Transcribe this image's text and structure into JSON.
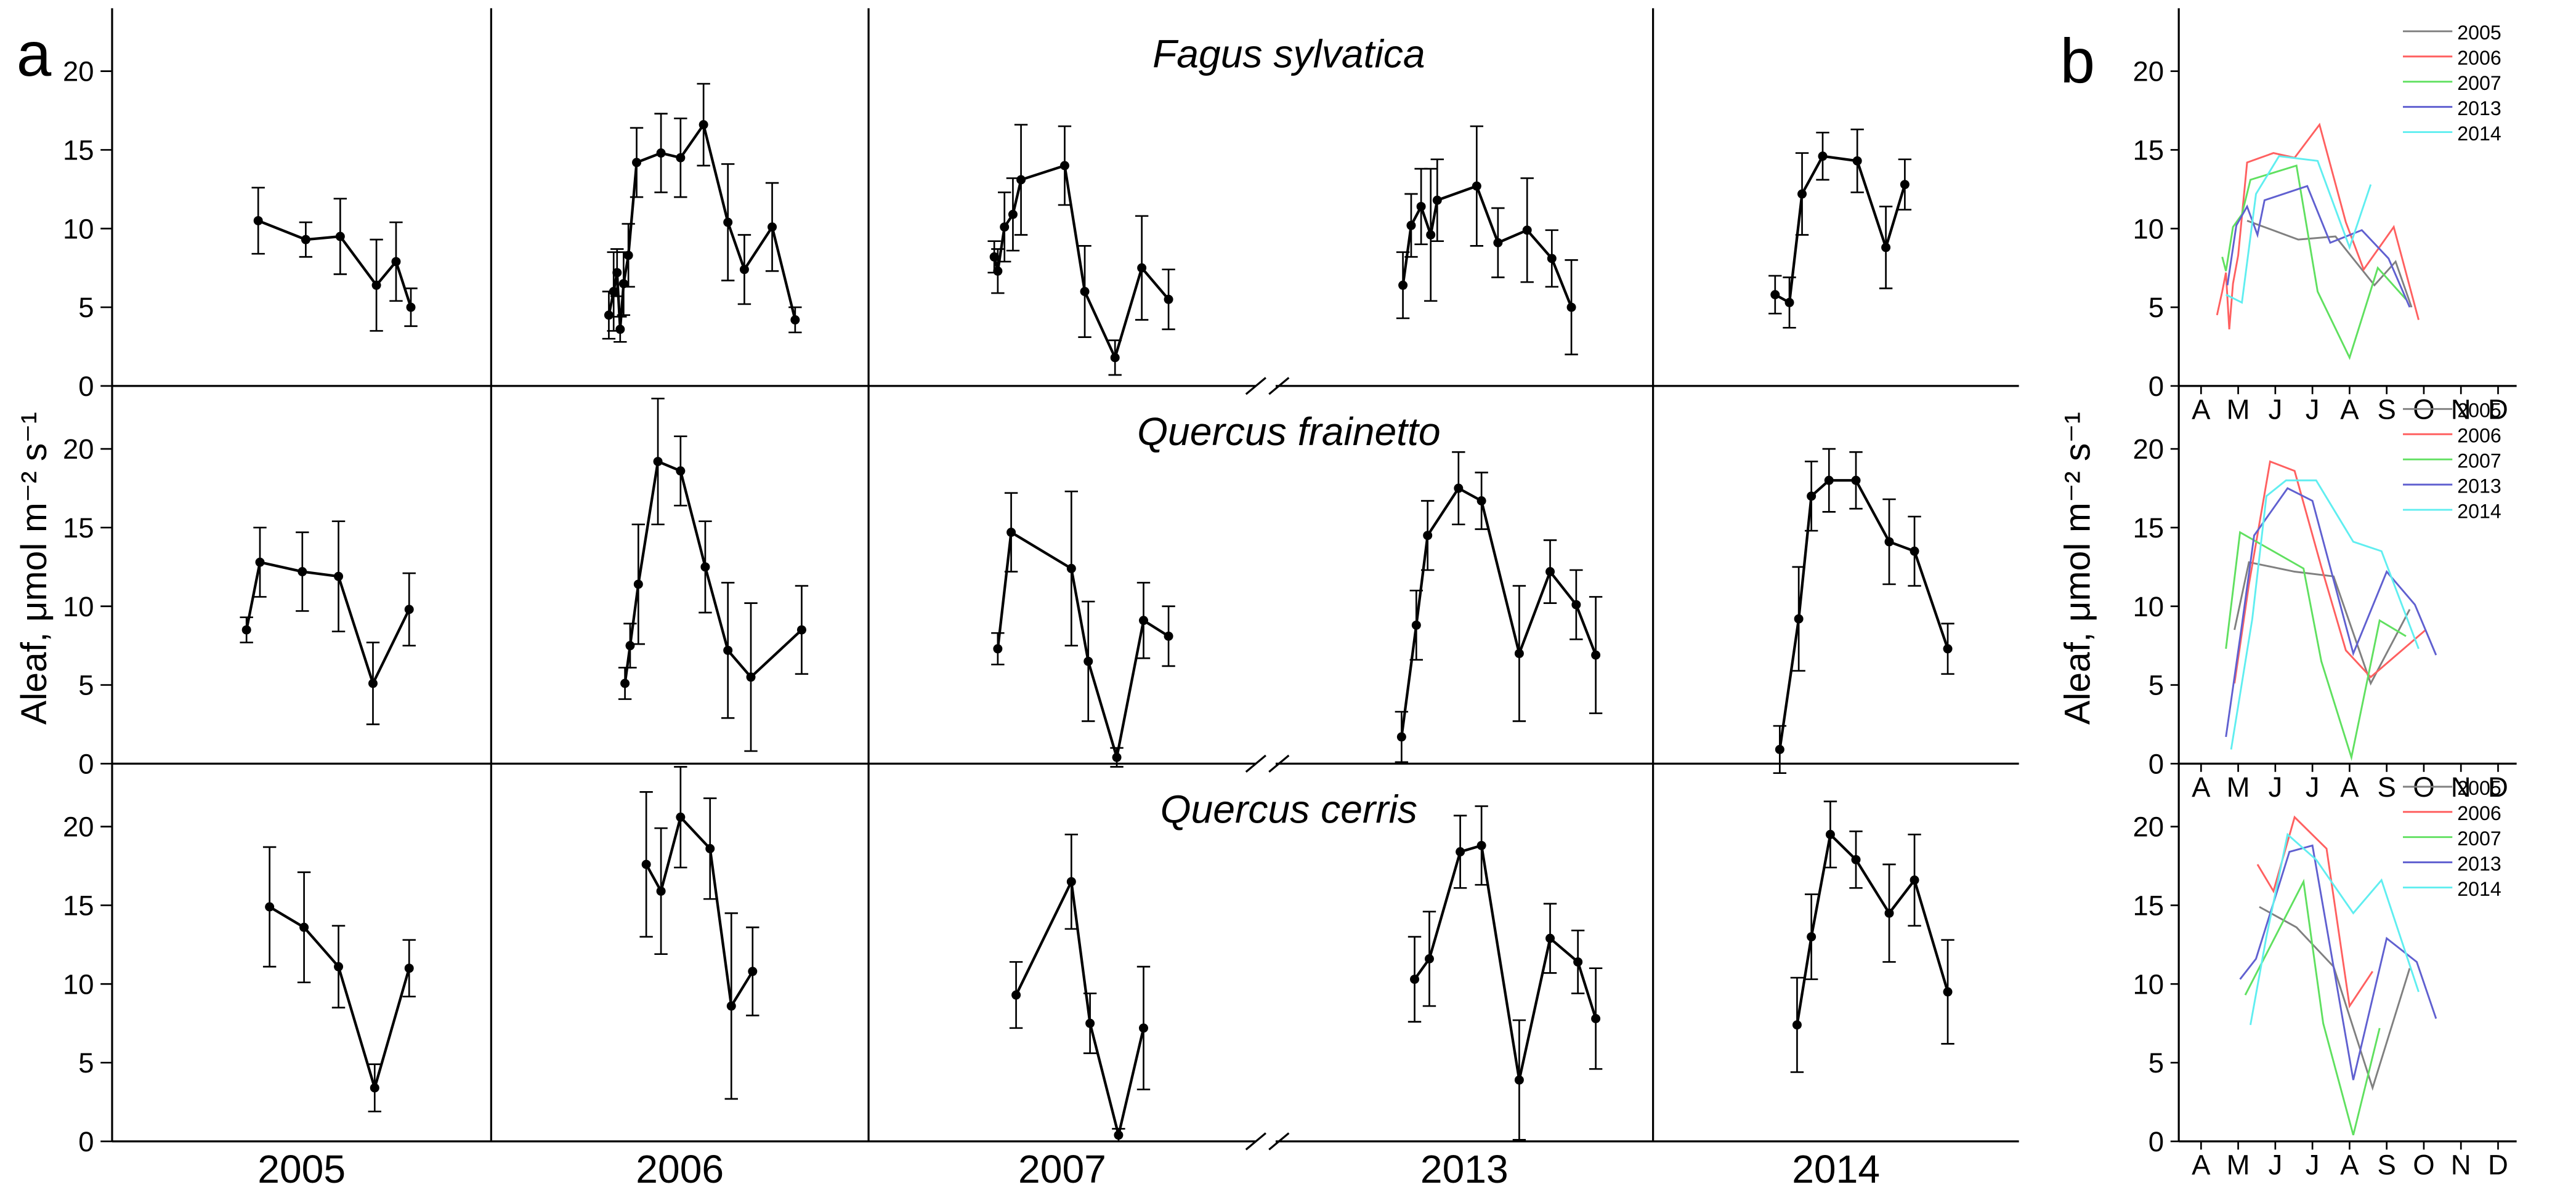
{
  "labels": [
    "a",
    "b"
  ],
  "ylabel": "Aleaf, μmol m⁻² s⁻¹",
  "chart_data": [
    {
      "type": "errorline",
      "title": "Fagus sylvatica",
      "xlim": [
        1,
        12
      ],
      "ylim": [
        0,
        24
      ],
      "yticks": [
        0,
        5,
        10,
        15,
        20
      ],
      "series": [
        {
          "x": [
            5.24,
            6.62,
            7.62,
            8.67,
            9.24,
            9.67
          ],
          "values": [
            10.5,
            9.3,
            9.5,
            6.4,
            7.9,
            5.0
          ],
          "errors": [
            2.1,
            1.1,
            2.4,
            2.9,
            2.5,
            1.2
          ]
        },
        {
          "x": [
            4.43,
            4.57,
            4.67,
            4.76,
            4.86,
            5.0,
            5.24,
            5.95,
            6.52,
            7.19,
            7.9,
            8.38,
            9.19,
            9.86
          ],
          "values": [
            4.5,
            6.0,
            7.2,
            3.6,
            6.5,
            8.3,
            14.2,
            14.8,
            14.5,
            16.6,
            10.4,
            7.4,
            10.1,
            4.2
          ],
          "errors": [
            1.5,
            2.5,
            1.5,
            0.8,
            2.0,
            2.0,
            2.2,
            2.5,
            2.5,
            2.6,
            3.7,
            2.2,
            2.8,
            0.8
          ]
        },
        {
          "x": [
            4.57,
            4.67,
            4.86,
            5.1,
            5.33,
            6.57,
            7.14,
            8.0,
            8.76,
            9.52
          ],
          "values": [
            8.2,
            7.3,
            10.1,
            10.9,
            13.1,
            14.0,
            6.0,
            1.8,
            7.5,
            5.5
          ],
          "errors": [
            1.0,
            1.4,
            2.2,
            2.3,
            3.5,
            2.5,
            2.9,
            1.1,
            3.3,
            1.9
          ]
        },
        {
          "x": [
            4.71,
            4.95,
            5.24,
            5.52,
            5.71,
            6.86,
            7.48,
            8.33,
            9.05,
            9.62
          ],
          "values": [
            6.4,
            10.2,
            11.4,
            9.6,
            11.8,
            12.7,
            9.1,
            9.9,
            8.1,
            5.0
          ],
          "errors": [
            2.1,
            2.0,
            2.4,
            4.2,
            2.6,
            3.8,
            2.2,
            3.3,
            1.8,
            3.0
          ]
        },
        {
          "x": [
            4.67,
            5.1,
            5.48,
            6.1,
            7.14,
            8.0,
            8.57
          ],
          "values": [
            5.8,
            5.3,
            12.2,
            14.6,
            14.3,
            8.8,
            12.8
          ],
          "errors": [
            1.2,
            1.6,
            2.6,
            1.5,
            2.0,
            2.6,
            1.6
          ]
        }
      ]
    },
    {
      "type": "errorline",
      "title": "Quercus frainetto",
      "xlim": [
        1,
        12
      ],
      "ylim": [
        0,
        24
      ],
      "yticks": [
        0,
        5,
        10,
        15,
        20
      ],
      "series": [
        {
          "x": [
            4.9,
            5.29,
            6.52,
            7.57,
            8.57,
            9.62
          ],
          "values": [
            8.5,
            12.8,
            12.2,
            11.9,
            5.1,
            9.8
          ],
          "errors": [
            0.8,
            2.2,
            2.5,
            3.5,
            2.6,
            2.3
          ]
        },
        {
          "x": [
            4.9,
            5.05,
            5.29,
            5.86,
            6.52,
            7.24,
            7.9,
            8.57,
            10.05
          ],
          "values": [
            5.1,
            7.5,
            11.4,
            19.2,
            18.6,
            12.5,
            7.2,
            5.5,
            8.5
          ],
          "errors": [
            1.0,
            1.4,
            3.8,
            4.0,
            2.2,
            2.9,
            4.3,
            4.7,
            2.8
          ]
        },
        {
          "x": [
            4.67,
            5.05,
            6.76,
            7.24,
            8.05,
            8.81,
            9.52
          ],
          "values": [
            7.3,
            14.7,
            12.4,
            6.5,
            0.4,
            9.1,
            8.1
          ],
          "errors": [
            1.0,
            2.5,
            4.9,
            3.8,
            0.6,
            2.4,
            1.9
          ]
        },
        {
          "x": [
            4.67,
            5.1,
            5.43,
            6.33,
            7.0,
            8.1,
            9.0,
            9.76,
            10.33
          ],
          "values": [
            1.7,
            8.8,
            14.5,
            17.5,
            16.7,
            7.0,
            12.2,
            10.1,
            6.9
          ],
          "errors": [
            1.6,
            2.2,
            2.2,
            2.3,
            1.8,
            4.3,
            2.0,
            2.2,
            3.7
          ]
        },
        {
          "x": [
            4.81,
            5.38,
            5.76,
            6.29,
            7.1,
            8.1,
            8.86,
            9.86
          ],
          "values": [
            0.9,
            9.2,
            17.0,
            18.0,
            18.0,
            14.1,
            13.5,
            7.3
          ],
          "errors": [
            1.5,
            3.3,
            2.2,
            2.0,
            1.8,
            2.7,
            2.2,
            1.6
          ]
        }
      ]
    },
    {
      "type": "errorline",
      "title": "Quercus cerris",
      "xlim": [
        1,
        12
      ],
      "ylim": [
        0,
        24
      ],
      "yticks": [
        0,
        5,
        10,
        15,
        20
      ],
      "categories": [
        "2005",
        "2006",
        "2007",
        "2013",
        "2014"
      ],
      "series": [
        {
          "x": [
            5.57,
            6.57,
            7.57,
            8.62,
            9.62
          ],
          "values": [
            14.9,
            13.6,
            11.1,
            3.4,
            11.0
          ],
          "errors": [
            3.8,
            3.5,
            2.6,
            1.5,
            1.8
          ]
        },
        {
          "x": [
            5.52,
            5.95,
            6.52,
            7.38,
            8.0,
            8.62
          ],
          "values": [
            17.6,
            15.9,
            20.6,
            18.6,
            8.6,
            10.8
          ],
          "errors": [
            4.6,
            4.0,
            3.2,
            3.2,
            5.9,
            2.8
          ]
        },
        {
          "x": [
            5.19,
            6.76,
            7.29,
            8.1,
            8.81
          ],
          "values": [
            9.3,
            16.5,
            7.5,
            0.4,
            7.2
          ],
          "errors": [
            2.1,
            3.0,
            1.9,
            0.4,
            3.9
          ]
        },
        {
          "x": [
            5.05,
            5.48,
            6.38,
            7.0,
            8.1,
            9.0,
            9.81,
            10.33
          ],
          "values": [
            10.3,
            11.6,
            18.4,
            18.8,
            3.9,
            12.9,
            11.4,
            7.8
          ],
          "errors": [
            2.7,
            3.0,
            2.3,
            2.5,
            3.8,
            2.2,
            2.0,
            3.2
          ]
        },
        {
          "x": [
            5.33,
            5.76,
            6.33,
            7.1,
            8.1,
            8.86,
            9.86
          ],
          "values": [
            7.4,
            13.0,
            19.5,
            17.9,
            14.5,
            16.6,
            9.5
          ],
          "errors": [
            3.0,
            2.7,
            2.1,
            1.8,
            3.1,
            2.9,
            3.3
          ]
        }
      ]
    },
    {
      "type": "line",
      "xlim": [
        3.4,
        12.5
      ],
      "ylim": [
        0,
        24
      ],
      "yticks": [
        0,
        5,
        10,
        15,
        20
      ],
      "xticks": [
        {
          "value": 4,
          "label": "A"
        },
        {
          "value": 5,
          "label": "M"
        },
        {
          "value": 6,
          "label": "J"
        },
        {
          "value": 7,
          "label": "J"
        },
        {
          "value": 8,
          "label": "A"
        },
        {
          "value": 9,
          "label": "S"
        },
        {
          "value": 10,
          "label": "O"
        },
        {
          "value": 11,
          "label": "N"
        },
        {
          "value": 12,
          "label": "D"
        }
      ],
      "series": [
        {
          "name": "2005",
          "color": "#808080",
          "x": [
            5.24,
            6.62,
            7.62,
            8.67,
            9.24,
            9.67
          ],
          "values": [
            10.5,
            9.3,
            9.5,
            6.4,
            7.9,
            5.0
          ]
        },
        {
          "name": "2006",
          "color": "#ff6060",
          "x": [
            4.43,
            4.57,
            4.67,
            4.76,
            4.86,
            5.0,
            5.24,
            5.95,
            6.52,
            7.19,
            7.9,
            8.38,
            9.19,
            9.86
          ],
          "values": [
            4.5,
            6.0,
            7.2,
            3.6,
            6.5,
            8.3,
            14.2,
            14.8,
            14.5,
            16.6,
            10.4,
            7.4,
            10.1,
            4.2
          ]
        },
        {
          "name": "2007",
          "color": "#60e060",
          "x": [
            4.57,
            4.67,
            4.86,
            5.1,
            5.33,
            6.57,
            7.14,
            8.0,
            8.76,
            9.52
          ],
          "values": [
            8.2,
            7.3,
            10.1,
            10.9,
            13.1,
            14.0,
            6.0,
            1.8,
            7.5,
            5.5
          ]
        },
        {
          "name": "2013",
          "color": "#6060d0",
          "x": [
            4.71,
            4.95,
            5.24,
            5.52,
            5.71,
            6.86,
            7.48,
            8.33,
            9.05,
            9.62
          ],
          "values": [
            6.4,
            10.2,
            11.4,
            9.6,
            11.8,
            12.7,
            9.1,
            9.9,
            8.1,
            5.0
          ]
        },
        {
          "name": "2014",
          "color": "#60eef0",
          "x": [
            4.67,
            5.1,
            5.48,
            6.1,
            7.14,
            8.0,
            8.57
          ],
          "values": [
            5.8,
            5.3,
            12.2,
            14.6,
            14.3,
            8.8,
            12.8
          ]
        }
      ]
    },
    {
      "type": "line",
      "xlim": [
        3.4,
        12.5
      ],
      "ylim": [
        0,
        24
      ],
      "yticks": [
        0,
        5,
        10,
        15,
        20
      ],
      "xticks": [
        {
          "value": 4,
          "label": "A"
        },
        {
          "value": 5,
          "label": "M"
        },
        {
          "value": 6,
          "label": "J"
        },
        {
          "value": 7,
          "label": "J"
        },
        {
          "value": 8,
          "label": "A"
        },
        {
          "value": 9,
          "label": "S"
        },
        {
          "value": 10,
          "label": "O"
        },
        {
          "value": 11,
          "label": "N"
        },
        {
          "value": 12,
          "label": "D"
        }
      ],
      "series": [
        {
          "name": "2005",
          "color": "#808080",
          "x": [
            4.9,
            5.29,
            6.52,
            7.57,
            8.57,
            9.62
          ],
          "values": [
            8.5,
            12.8,
            12.2,
            11.9,
            5.1,
            9.8
          ]
        },
        {
          "name": "2006",
          "color": "#ff6060",
          "x": [
            4.9,
            5.05,
            5.29,
            5.86,
            6.52,
            7.24,
            7.9,
            8.57,
            10.05
          ],
          "values": [
            5.1,
            7.5,
            11.4,
            19.2,
            18.6,
            12.5,
            7.2,
            5.5,
            8.5
          ]
        },
        {
          "name": "2007",
          "color": "#60e060",
          "x": [
            4.67,
            5.05,
            6.76,
            7.24,
            8.05,
            8.81,
            9.52
          ],
          "values": [
            7.3,
            14.7,
            12.4,
            6.5,
            0.4,
            9.1,
            8.1
          ]
        },
        {
          "name": "2013",
          "color": "#6060d0",
          "x": [
            4.67,
            5.1,
            5.43,
            6.33,
            7.0,
            8.1,
            9.0,
            9.76,
            10.33
          ],
          "values": [
            1.7,
            8.8,
            14.5,
            17.5,
            16.7,
            7.0,
            12.2,
            10.1,
            6.9
          ]
        },
        {
          "name": "2014",
          "color": "#60eef0",
          "x": [
            4.81,
            5.38,
            5.76,
            6.29,
            7.1,
            8.1,
            8.86,
            9.86
          ],
          "values": [
            0.9,
            9.2,
            17.0,
            18.0,
            18.0,
            14.1,
            13.5,
            7.3
          ]
        }
      ]
    },
    {
      "type": "line",
      "xlim": [
        3.4,
        12.5
      ],
      "ylim": [
        0,
        24
      ],
      "yticks": [
        0,
        5,
        10,
        15,
        20
      ],
      "xticks": [
        {
          "value": 4,
          "label": "A"
        },
        {
          "value": 5,
          "label": "M"
        },
        {
          "value": 6,
          "label": "J"
        },
        {
          "value": 7,
          "label": "J"
        },
        {
          "value": 8,
          "label": "A"
        },
        {
          "value": 9,
          "label": "S"
        },
        {
          "value": 10,
          "label": "O"
        },
        {
          "value": 11,
          "label": "N"
        },
        {
          "value": 12,
          "label": "D"
        }
      ],
      "series": [
        {
          "name": "2005",
          "color": "#808080",
          "x": [
            5.57,
            6.57,
            7.57,
            8.62,
            9.62
          ],
          "values": [
            14.9,
            13.6,
            11.1,
            3.4,
            11.0
          ]
        },
        {
          "name": "2006",
          "color": "#ff6060",
          "x": [
            5.52,
            5.95,
            6.52,
            7.38,
            8.0,
            8.62
          ],
          "values": [
            17.6,
            15.9,
            20.6,
            18.6,
            8.6,
            10.8
          ]
        },
        {
          "name": "2007",
          "color": "#60e060",
          "x": [
            5.19,
            6.76,
            7.29,
            8.1,
            8.81
          ],
          "values": [
            9.3,
            16.5,
            7.5,
            0.4,
            7.2
          ]
        },
        {
          "name": "2013",
          "color": "#6060d0",
          "x": [
            5.05,
            5.48,
            6.38,
            7.0,
            8.1,
            9.0,
            9.81,
            10.33
          ],
          "values": [
            10.3,
            11.6,
            18.4,
            18.8,
            3.9,
            12.9,
            11.4,
            7.8
          ]
        },
        {
          "name": "2014",
          "color": "#60eef0",
          "x": [
            5.33,
            5.76,
            6.33,
            7.1,
            8.1,
            8.86,
            9.86
          ],
          "values": [
            7.4,
            13.0,
            19.5,
            17.9,
            14.5,
            16.6,
            9.5
          ]
        }
      ]
    }
  ]
}
